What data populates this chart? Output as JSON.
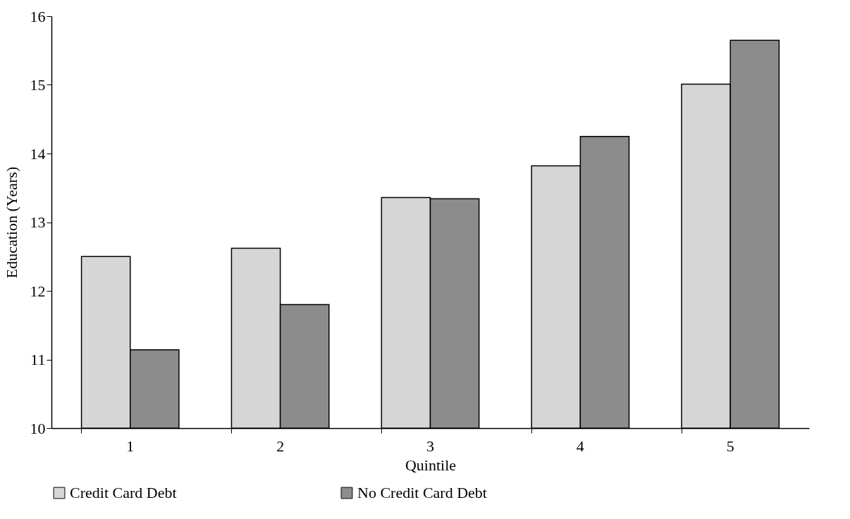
{
  "chart_data": {
    "type": "bar",
    "xlabel": "Quintile",
    "ylabel": "Education (Years)",
    "categories": [
      "1",
      "2",
      "3",
      "4",
      "5"
    ],
    "series": [
      {
        "name": "Credit Card Debt",
        "color": "#d6d6d6",
        "values": [
          12.5,
          12.62,
          13.36,
          13.82,
          15.01
        ]
      },
      {
        "name": "No Credit Card Debt",
        "color": "#8c8c8c",
        "values": [
          11.14,
          11.8,
          13.34,
          14.25,
          15.65
        ]
      }
    ],
    "ylim": [
      10,
      16
    ],
    "yticks": [
      10,
      11,
      12,
      13,
      14,
      15,
      16
    ],
    "grid": false,
    "legend": "bottom"
  }
}
